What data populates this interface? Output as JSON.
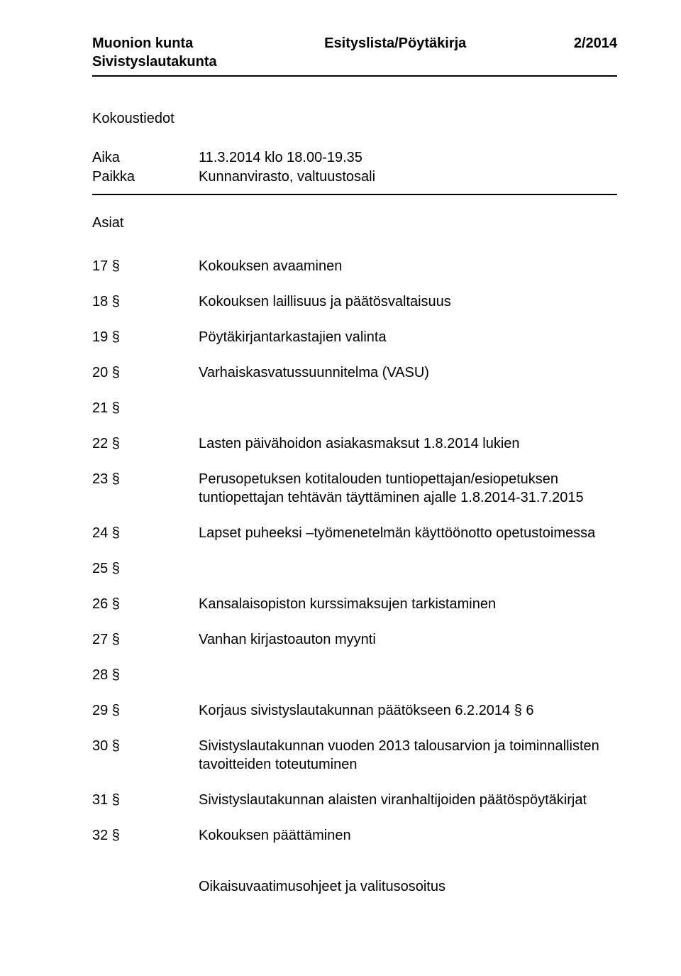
{
  "header": {
    "org_line1": "Muonion kunta",
    "org_line2": "Sivistyslautakunta",
    "center": "Esityslista/Pöytäkirja",
    "right": "2/2014"
  },
  "meeting_info": {
    "section_label": "Kokoustiedot",
    "rows": [
      {
        "label": "Aika",
        "value": "11.3.2014 klo 18.00-19.35"
      },
      {
        "label": "Paikka",
        "value": "Kunnanvirasto, valtuustosali"
      }
    ]
  },
  "agenda": {
    "label": "Asiat",
    "items": [
      {
        "num": "17 §",
        "text": "Kokouksen avaaminen"
      },
      {
        "num": "18 §",
        "text": "Kokouksen laillisuus ja päätösvaltaisuus"
      },
      {
        "num": "19 §",
        "text": "Pöytäkirjantarkastajien valinta"
      },
      {
        "num": "20 §",
        "text": "Varhaiskasvatussuunnitelma (VASU)"
      },
      {
        "num": "21 §",
        "text": ""
      },
      {
        "num": "22 §",
        "text": "Lasten päivähoidon asiakasmaksut 1.8.2014 lukien"
      },
      {
        "num": "23 §",
        "text": "Perusopetuksen kotitalouden tuntiopettajan/esiopetuksen tuntiopettajan tehtävän täyttäminen ajalle 1.8.2014-31.7.2015"
      },
      {
        "num": "24 §",
        "text": "Lapset puheeksi –työmenetelmän käyttöönotto opetustoimessa"
      },
      {
        "num": "25 §",
        "text": ""
      },
      {
        "num": "26 §",
        "text": "Kansalaisopiston kurssimaksujen tarkistaminen"
      },
      {
        "num": "27 §",
        "text": "Vanhan kirjastoauton myynti"
      },
      {
        "num": "28 §",
        "text": ""
      },
      {
        "num": "29 §",
        "text": "Korjaus sivistyslautakunnan päätökseen 6.2.2014 § 6"
      },
      {
        "num": "30 §",
        "text": "Sivistyslautakunnan vuoden 2013 talousarvion ja toiminnallisten tavoitteiden toteutuminen"
      },
      {
        "num": "31 §",
        "text": "Sivistyslautakunnan alaisten viranhaltijoiden päätöspöytäkirjat"
      },
      {
        "num": "32 §",
        "text": "Kokouksen päättäminen"
      }
    ]
  },
  "footer": "Oikaisuvaatimusohjeet ja valitusosoitus"
}
